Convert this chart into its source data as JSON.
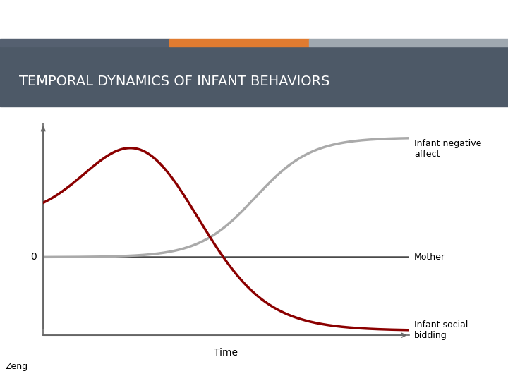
{
  "title": "TEMPORAL DYNAMICS OF INFANT BEHAVIORS",
  "title_bg_color": "#4d5967",
  "bar1_color": "#556070",
  "bar2_color": "#e07b30",
  "bar3_color": "#9fa8b0",
  "curve_infant_neg_color": "#aaaaaa",
  "curve_infant_social_color": "#8b0000",
  "curve_mother_color": "#4a4a4a",
  "xlabel": "Time",
  "xlabel_fontsize": 10,
  "title_fontsize": 14,
  "label_infant_neg": "Infant negative\naffect",
  "label_mother": "Mother",
  "label_infant_social": "Infant social\nbidding",
  "label_zeng": "Zeng",
  "bg_color": "#ffffff",
  "annotation_fontsize": 9
}
